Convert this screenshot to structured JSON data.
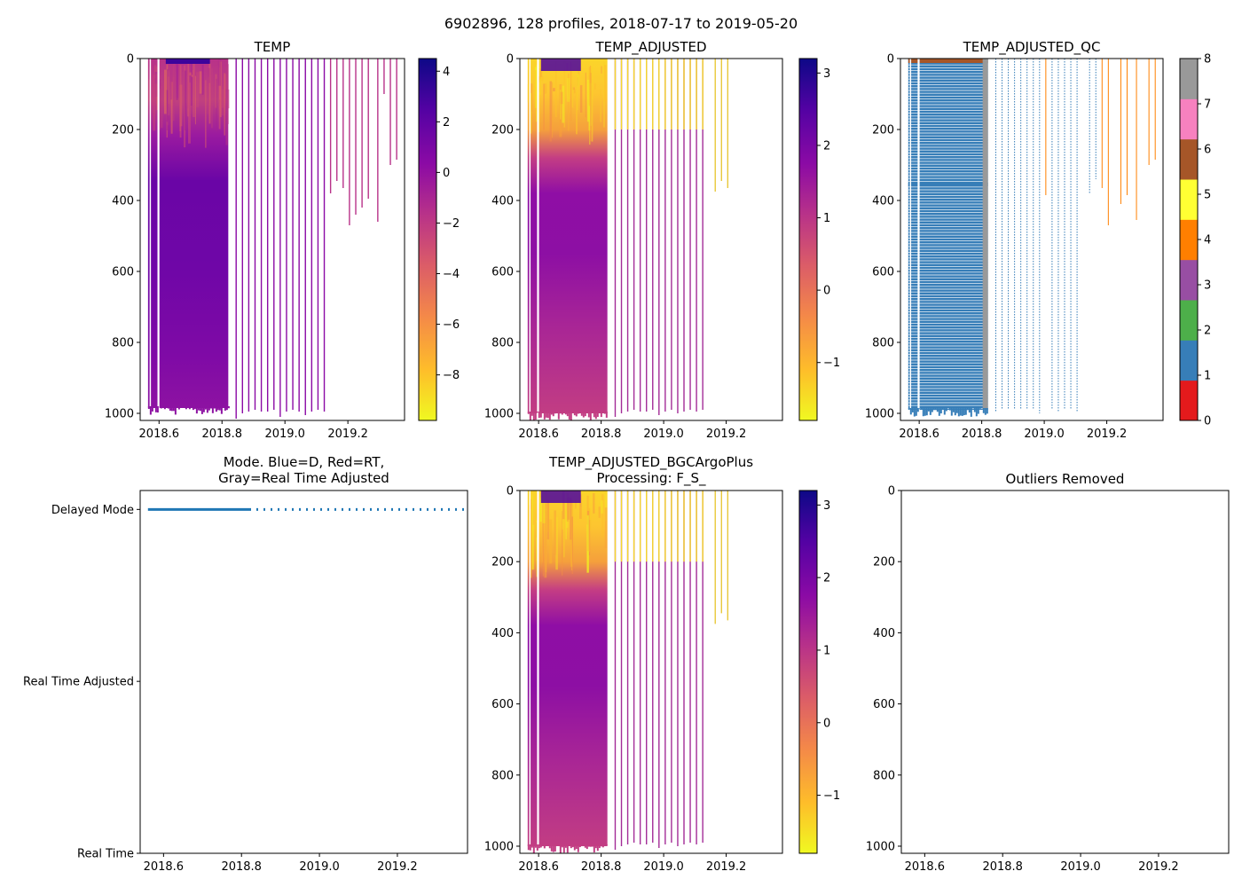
{
  "figure": {
    "suptitle": "6902896, 128 profiles, 2018-07-17 to 2019-05-20"
  },
  "colors": {
    "plasma": [
      "#0d0887",
      "#5302a3",
      "#8b0aa5",
      "#b83289",
      "#db5c68",
      "#f48849",
      "#febd2a",
      "#f0f921"
    ],
    "qc_classes": [
      "#e41a1c",
      "#377eb8",
      "#4daf4a",
      "#984ea3",
      "#ff7f00",
      "#ffff33",
      "#a65628",
      "#f781bf",
      "#999999"
    ],
    "mode_line": "#1f77b4"
  },
  "chart_data": [
    {
      "id": "temp",
      "type": "heatmap",
      "title": "TEMP",
      "xlabel": "",
      "ylabel": "",
      "x_ticks": [
        "2018.6",
        "2018.8",
        "2019.0",
        "2019.2"
      ],
      "x_tick_values": [
        2018.6,
        2018.8,
        2019.0,
        2019.2
      ],
      "y_ticks": [
        "0",
        "200",
        "400",
        "600",
        "800",
        "1000"
      ],
      "y_tick_values": [
        0,
        200,
        400,
        600,
        800,
        1000
      ],
      "xlim": [
        2018.54,
        2019.38
      ],
      "ylim": [
        1020,
        0
      ],
      "colorbar": {
        "range": [
          -9.8,
          4.5
        ],
        "ticks": [
          "4",
          "2",
          "0",
          "−2",
          "−4",
          "−6",
          "−8"
        ],
        "tick_values": [
          4,
          2,
          0,
          -2,
          -4,
          -6,
          -8
        ]
      },
      "dense_segment": {
        "x_range": [
          2018.565,
          2018.82
        ],
        "depth_max": 985
      },
      "sparse_profiles": [
        {
          "x": 2018.845,
          "depth": 1015
        },
        {
          "x": 2018.865,
          "depth": 1000
        },
        {
          "x": 2018.885,
          "depth": 995
        },
        {
          "x": 2018.905,
          "depth": 990
        },
        {
          "x": 2018.925,
          "depth": 995
        },
        {
          "x": 2018.945,
          "depth": 995
        },
        {
          "x": 2018.965,
          "depth": 990
        },
        {
          "x": 2018.985,
          "depth": 1010
        },
        {
          "x": 2019.005,
          "depth": 995
        },
        {
          "x": 2019.025,
          "depth": 990
        },
        {
          "x": 2019.045,
          "depth": 995
        },
        {
          "x": 2019.065,
          "depth": 1005
        },
        {
          "x": 2019.085,
          "depth": 995
        },
        {
          "x": 2019.105,
          "depth": 990
        },
        {
          "x": 2019.125,
          "depth": 995
        },
        {
          "x": 2019.145,
          "depth": 380
        },
        {
          "x": 2019.165,
          "depth": 345
        },
        {
          "x": 2019.185,
          "depth": 365
        },
        {
          "x": 2019.205,
          "depth": 470
        },
        {
          "x": 2019.225,
          "depth": 440
        },
        {
          "x": 2019.245,
          "depth": 420
        },
        {
          "x": 2019.265,
          "depth": 395
        },
        {
          "x": 2019.295,
          "depth": 460
        },
        {
          "x": 2019.315,
          "depth": 100
        },
        {
          "x": 2019.335,
          "depth": 300
        },
        {
          "x": 2019.355,
          "depth": 285
        }
      ]
    },
    {
      "id": "temp_adjusted",
      "type": "heatmap",
      "title": "TEMP_ADJUSTED",
      "x_ticks": [
        "2018.6",
        "2018.8",
        "2019.0",
        "2019.2"
      ],
      "x_tick_values": [
        2018.6,
        2018.8,
        2019.0,
        2019.2
      ],
      "y_ticks": [
        "0",
        "200",
        "400",
        "600",
        "800",
        "1000"
      ],
      "y_tick_values": [
        0,
        200,
        400,
        600,
        800,
        1000
      ],
      "xlim": [
        2018.54,
        2019.38
      ],
      "ylim": [
        1020,
        0
      ],
      "colorbar": {
        "range": [
          -1.8,
          3.2
        ],
        "ticks": [
          "3",
          "2",
          "1",
          "0",
          "−1"
        ],
        "tick_values": [
          3,
          2,
          1,
          0,
          -1
        ]
      },
      "dense_segment": {
        "x_range": [
          2018.565,
          2018.82
        ],
        "depth_max": 1000
      },
      "sparse_profiles": [
        {
          "x": 2018.845,
          "depth": 1010
        },
        {
          "x": 2018.865,
          "depth": 1000
        },
        {
          "x": 2018.885,
          "depth": 995
        },
        {
          "x": 2018.905,
          "depth": 990
        },
        {
          "x": 2018.925,
          "depth": 995
        },
        {
          "x": 2018.945,
          "depth": 995
        },
        {
          "x": 2018.965,
          "depth": 990
        },
        {
          "x": 2018.985,
          "depth": 1005
        },
        {
          "x": 2019.005,
          "depth": 995
        },
        {
          "x": 2019.025,
          "depth": 990
        },
        {
          "x": 2019.045,
          "depth": 1000
        },
        {
          "x": 2019.065,
          "depth": 995
        },
        {
          "x": 2019.085,
          "depth": 990
        },
        {
          "x": 2019.105,
          "depth": 995
        },
        {
          "x": 2019.125,
          "depth": 990
        },
        {
          "x": 2019.165,
          "depth": 375
        },
        {
          "x": 2019.185,
          "depth": 345
        },
        {
          "x": 2019.205,
          "depth": 365
        }
      ]
    },
    {
      "id": "temp_adjusted_qc",
      "type": "heatmap",
      "title": "TEMP_ADJUSTED_QC",
      "x_ticks": [
        "2018.6",
        "2018.8",
        "2019.0",
        "2019.2"
      ],
      "x_tick_values": [
        2018.6,
        2018.8,
        2019.0,
        2019.2
      ],
      "y_ticks": [
        "0",
        "200",
        "400",
        "600",
        "800",
        "1000"
      ],
      "y_tick_values": [
        0,
        200,
        400,
        600,
        800,
        1000
      ],
      "xlim": [
        2018.54,
        2019.38
      ],
      "ylim": [
        1020,
        0
      ],
      "colorbar": {
        "range": [
          0,
          8
        ],
        "ticks": [
          "8",
          "7",
          "6",
          "5",
          "4",
          "3",
          "2",
          "1",
          "0"
        ],
        "tick_values": [
          8,
          7,
          6,
          5,
          4,
          3,
          2,
          1,
          0
        ]
      },
      "dense_segment": {
        "x_range": [
          2018.565,
          2018.82
        ],
        "depth_max": 990
      },
      "sparse_profiles": [
        {
          "x": 2018.845,
          "depth": 995,
          "qc": 1
        },
        {
          "x": 2018.865,
          "depth": 990,
          "qc": 1
        },
        {
          "x": 2018.885,
          "depth": 990,
          "qc": 1
        },
        {
          "x": 2018.905,
          "depth": 990,
          "qc": 1
        },
        {
          "x": 2018.925,
          "depth": 990,
          "qc": 1
        },
        {
          "x": 2018.945,
          "depth": 990,
          "qc": 1
        },
        {
          "x": 2018.965,
          "depth": 990,
          "qc": 1
        },
        {
          "x": 2018.985,
          "depth": 1000,
          "qc": 1
        },
        {
          "x": 2019.005,
          "depth": 385,
          "qc": 4
        },
        {
          "x": 2019.025,
          "depth": 990,
          "qc": 1
        },
        {
          "x": 2019.045,
          "depth": 995,
          "qc": 1
        },
        {
          "x": 2019.065,
          "depth": 990,
          "qc": 1
        },
        {
          "x": 2019.085,
          "depth": 990,
          "qc": 1
        },
        {
          "x": 2019.105,
          "depth": 995,
          "qc": 1
        },
        {
          "x": 2019.145,
          "depth": 380,
          "qc": 1
        },
        {
          "x": 2019.165,
          "depth": 340,
          "qc": 1
        },
        {
          "x": 2019.185,
          "depth": 365,
          "qc": 4
        },
        {
          "x": 2019.205,
          "depth": 470,
          "qc": 4
        },
        {
          "x": 2019.245,
          "depth": 410,
          "qc": 4
        },
        {
          "x": 2019.265,
          "depth": 385,
          "qc": 4
        },
        {
          "x": 2019.295,
          "depth": 455,
          "qc": 4
        },
        {
          "x": 2019.335,
          "depth": 300,
          "qc": 4
        },
        {
          "x": 2019.355,
          "depth": 285,
          "qc": 4
        }
      ]
    },
    {
      "id": "mode",
      "type": "line",
      "title": "Mode. Blue=D, Red=RT,",
      "title2": "Gray=Real Time Adjusted",
      "x_ticks": [
        "2018.6",
        "2018.8",
        "2019.0",
        "2019.2"
      ],
      "x_tick_values": [
        2018.6,
        2018.8,
        2019.0,
        2019.2
      ],
      "y_ticks": [
        "Delayed Mode",
        "Real Time Adjusted",
        "Real Time"
      ],
      "y_tick_values": [
        2,
        1,
        0
      ],
      "xlim": [
        2018.54,
        2019.38
      ],
      "ylim": [
        0,
        2.11
      ],
      "series": [
        {
          "name": "D",
          "x_start": 2018.56,
          "x_end": 2019.38,
          "dense_until": 2018.82,
          "y": 2
        }
      ]
    },
    {
      "id": "temp_adjusted_bgc",
      "type": "heatmap",
      "title": "TEMP_ADJUSTED_BGCArgoPlus",
      "title2": "Processing: F_S_",
      "x_ticks": [
        "2018.6",
        "2018.8",
        "2019.0",
        "2019.2"
      ],
      "x_tick_values": [
        2018.6,
        2018.8,
        2019.0,
        2019.2
      ],
      "y_ticks": [
        "0",
        "200",
        "400",
        "600",
        "800",
        "1000"
      ],
      "y_tick_values": [
        0,
        200,
        400,
        600,
        800,
        1000
      ],
      "xlim": [
        2018.54,
        2019.38
      ],
      "ylim": [
        1020,
        0
      ],
      "colorbar": {
        "range": [
          -1.8,
          3.2
        ],
        "ticks": [
          "3",
          "2",
          "1",
          "0",
          "−1"
        ],
        "tick_values": [
          3,
          2,
          1,
          0,
          -1
        ]
      },
      "dense_segment": {
        "x_range": [
          2018.565,
          2018.82
        ],
        "depth_max": 1000
      },
      "sparse_profiles": [
        {
          "x": 2018.845,
          "depth": 1010
        },
        {
          "x": 2018.865,
          "depth": 1000
        },
        {
          "x": 2018.885,
          "depth": 995
        },
        {
          "x": 2018.905,
          "depth": 990
        },
        {
          "x": 2018.925,
          "depth": 995
        },
        {
          "x": 2018.945,
          "depth": 995
        },
        {
          "x": 2018.965,
          "depth": 990
        },
        {
          "x": 2018.985,
          "depth": 1005
        },
        {
          "x": 2019.005,
          "depth": 995
        },
        {
          "x": 2019.025,
          "depth": 990
        },
        {
          "x": 2019.045,
          "depth": 1000
        },
        {
          "x": 2019.065,
          "depth": 995
        },
        {
          "x": 2019.085,
          "depth": 990
        },
        {
          "x": 2019.105,
          "depth": 995
        },
        {
          "x": 2019.125,
          "depth": 990
        },
        {
          "x": 2019.165,
          "depth": 375
        },
        {
          "x": 2019.185,
          "depth": 345
        },
        {
          "x": 2019.205,
          "depth": 365
        }
      ]
    },
    {
      "id": "outliers",
      "type": "scatter",
      "title": "Outliers Removed",
      "x_ticks": [
        "2018.6",
        "2018.8",
        "2019.0",
        "2019.2"
      ],
      "x_tick_values": [
        2018.6,
        2018.8,
        2019.0,
        2019.2
      ],
      "y_ticks": [
        "0",
        "200",
        "400",
        "600",
        "800",
        "1000"
      ],
      "y_tick_values": [
        0,
        200,
        400,
        600,
        800,
        1000
      ],
      "xlim": [
        2018.54,
        2019.38
      ],
      "ylim": [
        1020,
        0
      ],
      "points": []
    }
  ]
}
